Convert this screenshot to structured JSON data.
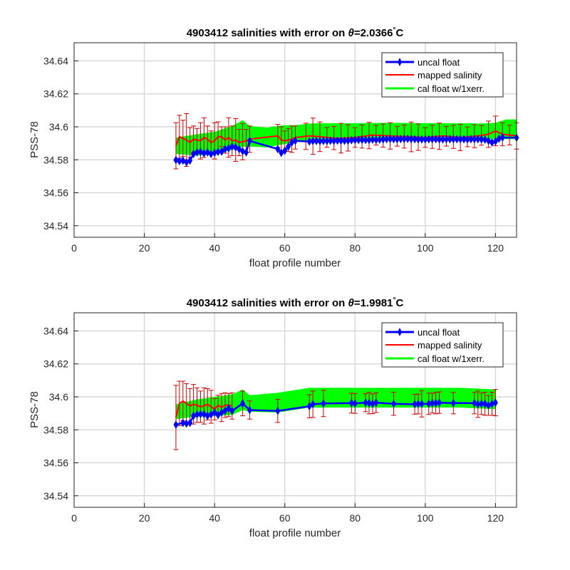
{
  "chart_data": [
    {
      "type": "line",
      "title": {
        "prefix": "4903412 salinities with error on ",
        "theta": "θ",
        "value": "=2.0366",
        "degree": "°",
        "unit": "C"
      },
      "xlabel": "float profile number",
      "ylabel": "PSS-78",
      "xlim": [
        0,
        126
      ],
      "ylim": [
        34.533,
        34.651
      ],
      "xticks": [
        "0",
        "20",
        "40",
        "60",
        "80",
        "100",
        "120"
      ],
      "yticks": [
        "34.54",
        "34.56",
        "34.58",
        "34.6",
        "34.62",
        "34.64"
      ],
      "grid": true,
      "legend_position": "top-right",
      "legend": [
        "uncal float",
        "mapped salinity",
        "cal float w/1xerr."
      ],
      "colors": {
        "uncal": "#0000ff",
        "mapped": "#ff0000",
        "errorbar": "#cc0000",
        "cal": "#00ff00"
      },
      "series": [
        {
          "name": "uncal float",
          "x": [
            29,
            30,
            31,
            32,
            33,
            34,
            35,
            36,
            37,
            38,
            39,
            40,
            41,
            42,
            43,
            44,
            45,
            46,
            47,
            48,
            49,
            50,
            58,
            59,
            60,
            61,
            62,
            63,
            67,
            68,
            69,
            70,
            71,
            72,
            73,
            74,
            75,
            76,
            77,
            78,
            79,
            80,
            81,
            82,
            83,
            84,
            85,
            86,
            87,
            88,
            89,
            90,
            91,
            92,
            93,
            94,
            95,
            96,
            97,
            98,
            99,
            100,
            101,
            102,
            103,
            104,
            105,
            106,
            107,
            108,
            109,
            110,
            111,
            112,
            113,
            114,
            115,
            116,
            117,
            118,
            119,
            120,
            121,
            122,
            126
          ],
          "y": [
            34.5799,
            34.5792,
            34.5795,
            34.5785,
            34.5795,
            34.5835,
            34.5845,
            34.5848,
            34.584,
            34.5845,
            34.5835,
            34.5842,
            34.5848,
            34.585,
            34.5865,
            34.587,
            34.588,
            34.5875,
            34.5865,
            34.5852,
            34.5845,
            34.5915,
            34.5865,
            34.5842,
            34.5855,
            34.588,
            34.5905,
            34.5915,
            34.5911,
            34.5914,
            34.5914,
            34.5913,
            34.5914,
            34.5914,
            34.5915,
            34.5915,
            34.5916,
            34.5916,
            34.5915,
            34.5916,
            34.5919,
            34.592,
            34.592,
            34.5921,
            34.592,
            34.592,
            34.5922,
            34.5921,
            34.5922,
            34.5924,
            34.5925,
            34.5926,
            34.5925,
            34.5925,
            34.5926,
            34.5926,
            34.5927,
            34.5926,
            34.5925,
            34.5924,
            34.5924,
            34.5924,
            34.5925,
            34.5925,
            34.5925,
            34.5924,
            34.5924,
            34.5925,
            34.5925,
            34.5925,
            34.5925,
            34.5925,
            34.5925,
            34.5924,
            34.5925,
            34.5925,
            34.5925,
            34.5924,
            34.5922,
            34.5915,
            34.5905,
            34.5912,
            34.5928,
            34.5935,
            34.5934
          ]
        },
        {
          "name": "mapped salinity",
          "x": [
            29,
            30,
            31,
            32,
            33,
            34,
            35,
            36,
            37,
            38,
            39,
            40,
            41,
            42,
            43,
            44,
            45,
            46,
            47,
            48,
            49,
            50,
            58,
            59,
            60,
            61,
            62,
            63,
            67,
            70,
            75,
            80,
            85,
            90,
            95,
            100,
            105,
            110,
            115,
            118,
            120,
            122,
            126
          ],
          "y": [
            34.5885,
            34.594,
            34.593,
            34.592,
            34.5905,
            34.5925,
            34.592,
            34.5915,
            34.5935,
            34.5925,
            34.5905,
            34.5915,
            34.594,
            34.594,
            34.592,
            34.5935,
            34.5915,
            34.592,
            34.5905,
            34.591,
            34.5915,
            34.5925,
            34.5945,
            34.592,
            34.5915,
            34.592,
            34.5925,
            34.5935,
            34.5945,
            34.594,
            34.593,
            34.5935,
            34.595,
            34.5945,
            34.594,
            34.5935,
            34.5945,
            34.5935,
            34.5945,
            34.5955,
            34.5975,
            34.5955,
            34.5945
          ]
        }
      ],
      "error_bars": {
        "x": [
          29,
          30,
          31,
          32,
          33,
          34,
          35,
          36,
          37,
          38,
          39,
          40,
          41,
          42,
          43,
          44,
          45,
          46,
          47,
          48,
          49,
          50,
          58,
          59,
          60,
          61,
          62,
          63,
          66,
          68,
          70,
          72,
          74,
          76,
          78,
          80,
          82,
          84,
          86,
          88,
          90,
          92,
          94,
          96,
          98,
          100,
          102,
          104,
          106,
          108,
          110,
          112,
          114,
          116,
          118,
          120,
          122,
          124,
          126
        ],
        "half_width": [
          0.014,
          0.013,
          0.011,
          0.016,
          0.009,
          0.008,
          0.007,
          0.011,
          0.012,
          0.008,
          0.007,
          0.011,
          0.009,
          0.006,
          0.008,
          0.012,
          0.009,
          0.013,
          0.008,
          0.011,
          0.007,
          0.008,
          0.007,
          0.008,
          0.006,
          0.007,
          0.008,
          0.007,
          0.008,
          0.011,
          0.009,
          0.006,
          0.007,
          0.009,
          0.008,
          0.006,
          0.007,
          0.008,
          0.006,
          0.007,
          0.008,
          0.006,
          0.007,
          0.009,
          0.008,
          0.006,
          0.007,
          0.008,
          0.006,
          0.007,
          0.008,
          0.006,
          0.007,
          0.006,
          0.008,
          0.009,
          0.007,
          0.006,
          0.008
        ]
      },
      "cal_band": {
        "x": [
          29,
          35,
          40,
          45,
          48,
          50,
          55,
          58,
          60,
          63,
          67,
          70,
          80,
          90,
          100,
          110,
          116,
          120,
          123,
          126
        ],
        "lower": [
          34.5835,
          34.5825,
          34.5835,
          34.586,
          34.5878,
          34.588,
          34.5875,
          34.5888,
          34.5895,
          34.5908,
          34.5918,
          34.5922,
          34.5926,
          34.5928,
          34.5926,
          34.5926,
          34.5925,
          34.5925,
          34.5925,
          34.5925
        ],
        "upper": [
          34.5935,
          34.5955,
          34.597,
          34.6005,
          34.604,
          34.6005,
          34.5995,
          34.6005,
          34.601,
          34.601,
          34.602,
          34.6022,
          34.6022,
          34.6024,
          34.6022,
          34.6022,
          34.602,
          34.6025,
          34.6045,
          34.6045
        ]
      }
    },
    {
      "type": "line",
      "title": {
        "prefix": "4903412 salinities with error on ",
        "theta": "θ",
        "value": "=1.9981",
        "degree": "°",
        "unit": "C"
      },
      "xlabel": "float profile number",
      "ylabel": "PSS-78",
      "xlim": [
        0,
        126
      ],
      "ylim": [
        34.533,
        34.651
      ],
      "xticks": [
        "0",
        "20",
        "40",
        "60",
        "80",
        "100",
        "120"
      ],
      "yticks": [
        "34.54",
        "34.56",
        "34.58",
        "34.6",
        "34.62",
        "34.64"
      ],
      "grid": true,
      "legend_position": "top-right",
      "legend": [
        "uncal float",
        "mapped salinity",
        "cal float w/1xerr."
      ],
      "colors": {
        "uncal": "#0000ff",
        "mapped": "#ff0000",
        "errorbar": "#cc0000",
        "cal": "#00ff00"
      },
      "series": [
        {
          "name": "uncal float",
          "x": [
            29,
            31,
            32,
            33,
            34,
            35,
            36,
            37,
            38,
            39,
            40,
            41,
            42,
            43,
            44,
            45,
            48,
            50,
            58,
            67,
            68,
            71,
            79,
            80,
            83,
            84,
            85,
            86,
            91,
            97,
            98,
            99,
            101,
            102,
            103,
            104,
            108,
            114,
            115,
            116,
            117,
            118,
            119,
            120
          ],
          "y": [
            34.5831,
            34.5842,
            34.5838,
            34.5842,
            34.5885,
            34.5893,
            34.5895,
            34.5895,
            34.5885,
            34.5893,
            34.5905,
            34.589,
            34.5905,
            34.5915,
            34.593,
            34.5915,
            34.596,
            34.592,
            34.5915,
            34.5943,
            34.5955,
            34.596,
            34.5962,
            34.596,
            34.5965,
            34.5962,
            34.5958,
            34.5965,
            34.5958,
            34.5955,
            34.5957,
            34.5958,
            34.5958,
            34.5962,
            34.5962,
            34.5965,
            34.5962,
            34.5962,
            34.5955,
            34.5958,
            34.5958,
            34.5948,
            34.5958,
            34.5965
          ]
        },
        {
          "name": "mapped salinity",
          "x": [
            29,
            30,
            31,
            32,
            33,
            34,
            35,
            36,
            37,
            38,
            39,
            40,
            41,
            42,
            43,
            44,
            45
          ],
          "y": [
            34.5875,
            34.596,
            34.5975,
            34.596,
            34.5945,
            34.5955,
            34.595,
            34.594,
            34.5945,
            34.5955,
            34.594,
            34.5925,
            34.595,
            34.5935,
            34.595,
            34.595,
            34.5945
          ]
        }
      ],
      "error_bars": {
        "x": [
          29,
          30,
          31,
          32,
          33,
          34,
          35,
          36,
          37,
          38,
          39,
          40,
          41,
          42,
          43,
          44,
          45,
          48,
          50,
          58,
          67,
          68,
          71,
          79,
          80,
          83,
          84,
          85,
          86,
          91,
          97,
          98,
          99,
          101,
          102,
          103,
          104,
          108,
          114,
          115,
          116,
          117,
          118,
          119,
          120
        ],
        "half_width": [
          0.0195,
          0.0135,
          0.012,
          0.012,
          0.0105,
          0.012,
          0.0105,
          0.0095,
          0.011,
          0.0095,
          0.01,
          0.0065,
          0.006,
          0.0085,
          0.0075,
          0.007,
          0.008,
          0.0075,
          0.0055,
          0.007,
          0.007,
          0.008,
          0.008,
          0.006,
          0.006,
          0.0055,
          0.0065,
          0.006,
          0.006,
          0.007,
          0.006,
          0.006,
          0.008,
          0.0065,
          0.006,
          0.0065,
          0.0065,
          0.0065,
          0.0065,
          0.008,
          0.0065,
          0.007,
          0.006,
          0.007,
          0.008
        ]
      },
      "cal_band": {
        "x": [
          29,
          35,
          40,
          45,
          48,
          50,
          58,
          67,
          70,
          80,
          90,
          100,
          110,
          115,
          120
        ],
        "lower": [
          34.5865,
          34.588,
          34.5885,
          34.589,
          34.592,
          34.591,
          34.5905,
          34.5935,
          34.5935,
          34.5935,
          34.5935,
          34.5935,
          34.5935,
          34.593,
          34.5925
        ],
        "upper": [
          34.5955,
          34.5985,
          34.6,
          34.6015,
          34.6045,
          34.601,
          34.6025,
          34.6055,
          34.6055,
          34.6055,
          34.6055,
          34.6055,
          34.6055,
          34.605,
          34.6045
        ]
      }
    }
  ]
}
